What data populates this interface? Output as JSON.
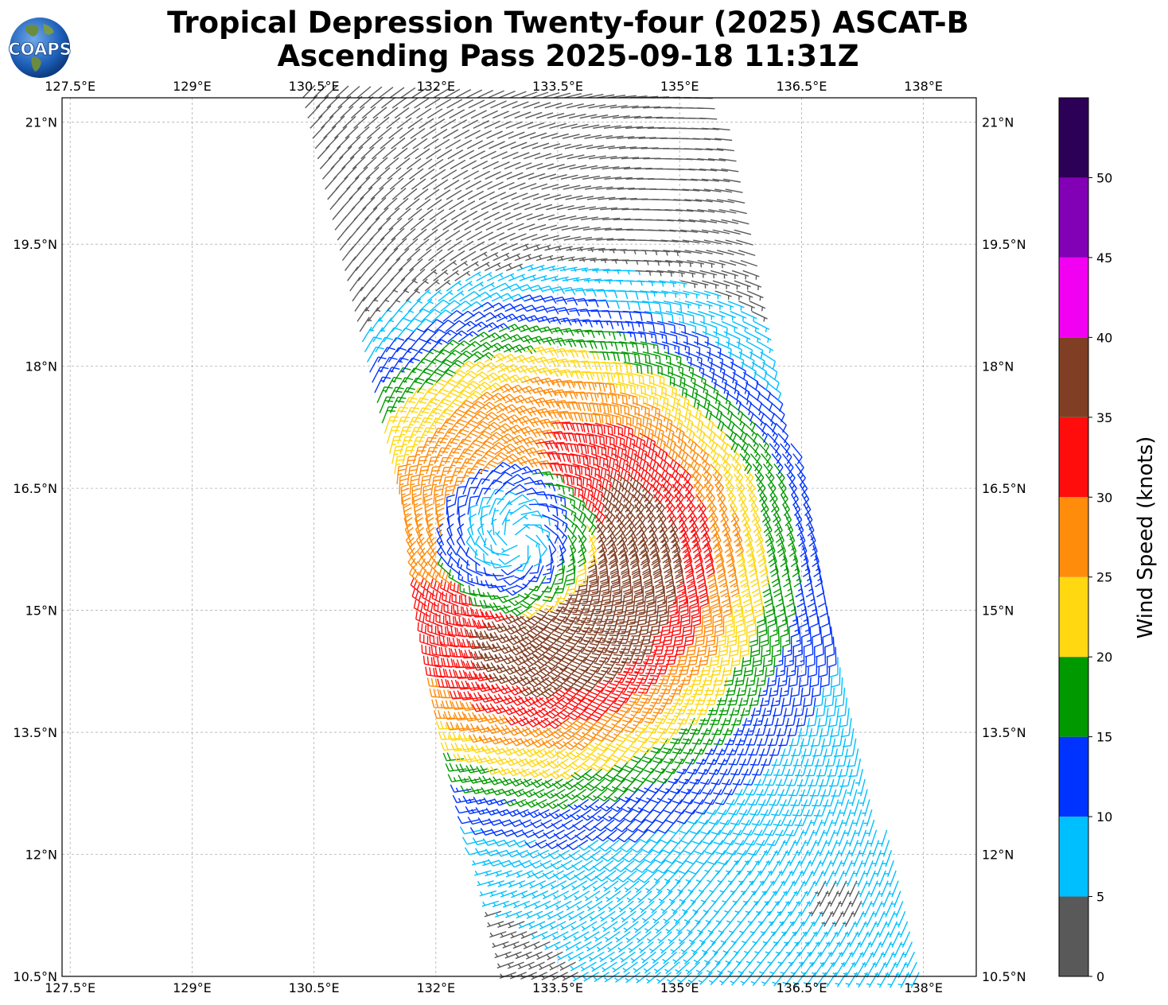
{
  "title": {
    "line1": "Tropical Depression Twenty-four (2025) ASCAT-B",
    "line2": "Ascending Pass 2025-09-18 11:31Z"
  },
  "logo": {
    "text": "COAPS",
    "icon": "globe-icon"
  },
  "map": {
    "lon_range": [
      127.4,
      138.65
    ],
    "lat_range": [
      10.5,
      21.3
    ],
    "grid": true,
    "lon_ticks": [
      {
        "value": 127.5,
        "label": "127.5°E"
      },
      {
        "value": 129.0,
        "label": "129°E"
      },
      {
        "value": 130.5,
        "label": "130.5°E"
      },
      {
        "value": 132.0,
        "label": "132°E"
      },
      {
        "value": 133.5,
        "label": "133.5°E"
      },
      {
        "value": 135.0,
        "label": "135°E"
      },
      {
        "value": 136.5,
        "label": "136.5°E"
      },
      {
        "value": 138.0,
        "label": "138°E"
      }
    ],
    "lat_ticks": [
      {
        "value": 21.0,
        "label": "21°N"
      },
      {
        "value": 19.5,
        "label": "19.5°N"
      },
      {
        "value": 18.0,
        "label": "18°N"
      },
      {
        "value": 16.5,
        "label": "16.5°N"
      },
      {
        "value": 15.0,
        "label": "15°N"
      },
      {
        "value": 13.5,
        "label": "13.5°N"
      },
      {
        "value": 12.0,
        "label": "12°N"
      },
      {
        "value": 10.5,
        "label": "10.5°N"
      }
    ]
  },
  "wind_field": {
    "center": {
      "lon": 133.0,
      "lat": 15.85
    },
    "swath_corners": [
      [
        130.35,
        21.35
      ],
      [
        135.3,
        21.35
      ],
      [
        138.0,
        10.5
      ],
      [
        133.0,
        10.5
      ]
    ],
    "notes_units": "knots"
  },
  "colorbar": {
    "label": "Wind Speed (knots)",
    "range": [
      0,
      55
    ],
    "bins": [
      {
        "from": 0,
        "to": 5,
        "color": "#595959"
      },
      {
        "from": 5,
        "to": 10,
        "color": "#00bfff"
      },
      {
        "from": 10,
        "to": 15,
        "color": "#0033ff"
      },
      {
        "from": 15,
        "to": 20,
        "color": "#009900"
      },
      {
        "from": 20,
        "to": 25,
        "color": "#ffd812"
      },
      {
        "from": 25,
        "to": 30,
        "color": "#ff8c0a"
      },
      {
        "from": 30,
        "to": 35,
        "color": "#ff0d0d"
      },
      {
        "from": 35,
        "to": 40,
        "color": "#803f24"
      },
      {
        "from": 40,
        "to": 45,
        "color": "#f200f2"
      },
      {
        "from": 45,
        "to": 50,
        "color": "#8200b5"
      },
      {
        "from": 50,
        "to": 55,
        "color": "#2d0057"
      }
    ],
    "ticks": [
      "0",
      "5",
      "10",
      "15",
      "20",
      "25",
      "30",
      "35",
      "40",
      "45",
      "50"
    ]
  }
}
